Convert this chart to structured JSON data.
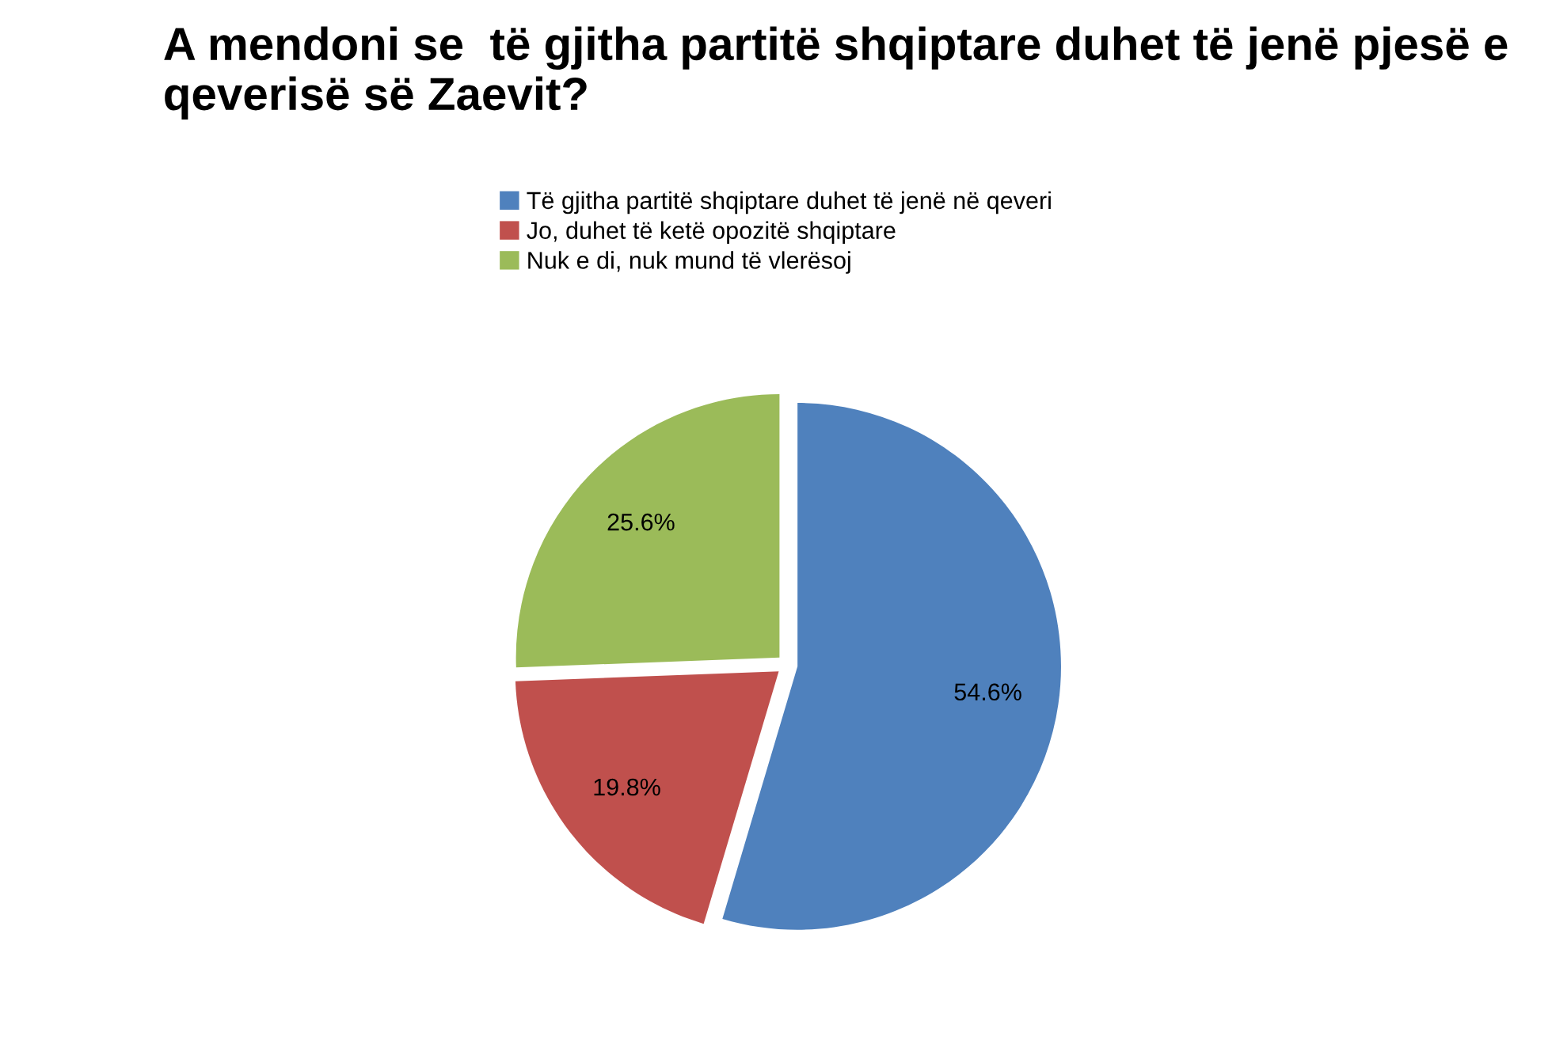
{
  "chart_data": {
    "type": "pie",
    "title": "A mendoni se  të gjitha partitë shqiptare duhet të jenë pjesë e qeverisë së Zaevit?",
    "categories": [
      "Të gjitha partitë shqiptare duhet të jenë në qeveri",
      "Jo, duhet të ketë opozitë shqiptare",
      "Nuk e di, nuk mund të vlerësoj"
    ],
    "values": [
      54.6,
      19.8,
      25.6
    ],
    "colors": [
      "#4f81bd",
      "#c0504d",
      "#9bbb59"
    ],
    "value_labels": [
      "54.6%",
      "19.8%",
      "25.6%"
    ],
    "data_labels": true,
    "legend": "top"
  }
}
